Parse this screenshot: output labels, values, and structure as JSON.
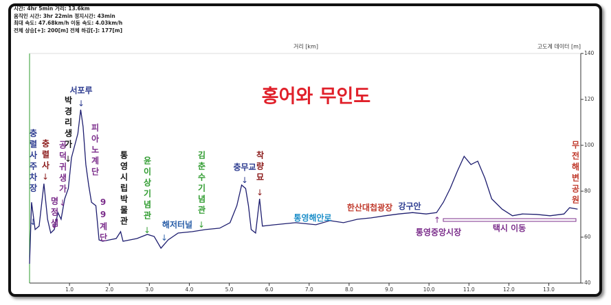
{
  "stats": [
    "시간: 4hr 5min  거리: 13.6km",
    "움직인 시간: 3hr 22min  정지시간: 43min",
    "최대 속도: 47.68km/h  이동 속도: 4.03km/h",
    "전체 상승[+]: 200[m]  전체 하강[-]: 177[m]"
  ],
  "chart_data": {
    "type": "line",
    "title": "홍어와 무인도",
    "x_label": "거리 [km]",
    "y_label": "고도계 데이터 [m]",
    "x": [
      0,
      0.05,
      0.14,
      0.24,
      0.36,
      0.45,
      0.53,
      0.62,
      0.71,
      0.79,
      0.88,
      0.97,
      1.05,
      1.14,
      1.21,
      1.28,
      1.34,
      1.41,
      1.48,
      1.55,
      1.66,
      1.74,
      1.83,
      2.0,
      2.17,
      2.28,
      2.34,
      2.69,
      2.95,
      3.12,
      3.29,
      3.47,
      3.72,
      4.07,
      4.41,
      4.76,
      5.02,
      5.19,
      5.31,
      5.41,
      5.48,
      5.55,
      5.66,
      5.76,
      5.83,
      6.14,
      6.66,
      7.17,
      7.52,
      7.86,
      8.21,
      8.55,
      8.9,
      9.24,
      9.59,
      9.93,
      10.19,
      10.36,
      10.53,
      10.71,
      10.88,
      11.05,
      11.22,
      11.4,
      11.57,
      11.83,
      12.09,
      12.34,
      12.69,
      13.03,
      13.38,
      13.52,
      13.72
    ],
    "series": [
      {
        "color": "#1c1c6e",
        "values": [
          48.4,
          75.2,
          63.3,
          64.8,
          83.3,
          67.8,
          61.8,
          63.3,
          70.7,
          67.8,
          76.7,
          81.2,
          94.6,
          100.6,
          105.1,
          115.5,
          108.1,
          91.6,
          82.7,
          75.2,
          73.7,
          58.8,
          58.2,
          58.8,
          59.4,
          62.4,
          58.2,
          59.4,
          61.2,
          60.3,
          55.2,
          58.8,
          61.8,
          62.4,
          63.3,
          63.9,
          66.3,
          73.7,
          82.7,
          81.2,
          73.7,
          63.3,
          61.8,
          76.7,
          64.8,
          65.4,
          66.3,
          65.4,
          67.2,
          66.3,
          67.8,
          68.4,
          69.3,
          70.1,
          70.7,
          70.1,
          70.7,
          75.2,
          81.2,
          88.7,
          95.2,
          91.6,
          93.1,
          85.7,
          76.7,
          72.2,
          69.3,
          70.1,
          69.9,
          69.3,
          70.1,
          72.8,
          72.2
        ]
      }
    ],
    "xlim": [
      0,
      13.8
    ],
    "ylim": [
      40,
      140
    ],
    "xticks": [
      {
        "value": 1,
        "label": "1.0"
      },
      {
        "value": 2,
        "label": "2.0"
      },
      {
        "value": 3,
        "label": "3.0"
      },
      {
        "value": 4,
        "label": "4.0"
      },
      {
        "value": 5,
        "label": "5.0"
      },
      {
        "value": 6,
        "label": "6.0"
      },
      {
        "value": 7,
        "label": "7.0"
      },
      {
        "value": 8,
        "label": "8.0"
      },
      {
        "value": 9,
        "label": "9.0"
      },
      {
        "value": 10,
        "label": "10.0"
      },
      {
        "value": 11,
        "label": "11.0"
      },
      {
        "value": 12,
        "label": "12.0"
      },
      {
        "value": 13,
        "label": "13.0"
      }
    ],
    "yticks": [
      40,
      60,
      80,
      100,
      120,
      140
    ],
    "annotations": [
      {
        "text": "충렬사주차장",
        "color": "#2b3a8f"
      },
      {
        "text": "충렬사",
        "color": "#8b1a1a"
      },
      {
        "text": "명정샘",
        "color": "#7b2d8b"
      },
      {
        "text": "공덕귀생가",
        "color": "#7b2d8b"
      },
      {
        "text": "박경리생가",
        "color": "#111111"
      },
      {
        "text": "서포루",
        "color": "#2b3a8f"
      },
      {
        "text": "피아노계단",
        "color": "#7b2d8b"
      },
      {
        "text": "99계단",
        "color": "#7b2d8b"
      },
      {
        "text": "통영시립박물관",
        "color": "#111111"
      },
      {
        "text": "윤이상기념관",
        "color": "#2e9b2e"
      },
      {
        "text": "해저터널",
        "color": "#2b5fa8"
      },
      {
        "text": "김춘수기념관",
        "color": "#2e9b2e"
      },
      {
        "text": "충무교",
        "color": "#2b3a8f"
      },
      {
        "text": "착량묘",
        "color": "#8b1a1a"
      },
      {
        "text": "통영해안로",
        "color": "#1e8fc9"
      },
      {
        "text": "한산대첩광장",
        "color": "#c0392b"
      },
      {
        "text": "강구안",
        "color": "#2b3a8f"
      },
      {
        "text": "통영중앙시장",
        "color": "#7b2d8b"
      },
      {
        "text": "택시 이동",
        "color": "#7b2d8b"
      },
      {
        "text": "무전해변공원",
        "color": "#c0392b"
      }
    ]
  }
}
